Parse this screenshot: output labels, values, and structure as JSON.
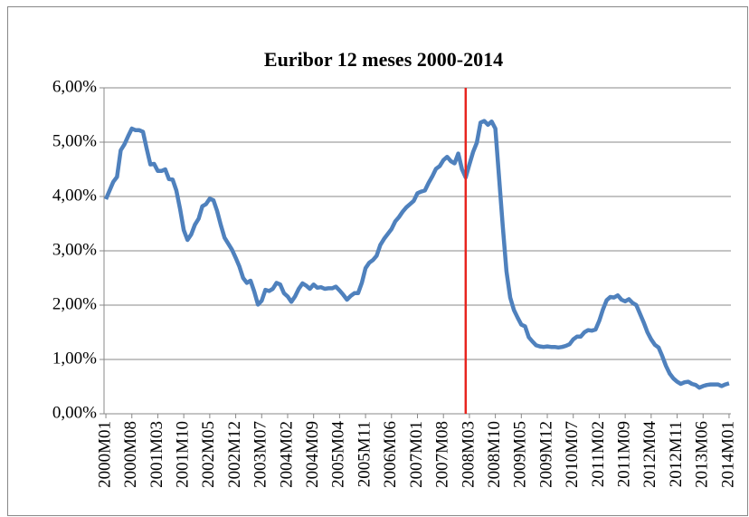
{
  "chart_data": {
    "type": "line",
    "title": "Euribor 12 meses 2000-2014",
    "categories": [
      "2000M01",
      null,
      null,
      null,
      null,
      null,
      null,
      "2000M08",
      null,
      null,
      null,
      null,
      null,
      null,
      "2001M03",
      null,
      null,
      null,
      null,
      null,
      null,
      "2001M10",
      null,
      null,
      null,
      null,
      null,
      null,
      "2002M05",
      null,
      null,
      null,
      null,
      null,
      null,
      "2002M12",
      null,
      null,
      null,
      null,
      null,
      null,
      "2003M07",
      null,
      null,
      null,
      null,
      null,
      null,
      "2004M02",
      null,
      null,
      null,
      null,
      null,
      null,
      "2004M09",
      null,
      null,
      null,
      null,
      null,
      null,
      "2005M04",
      null,
      null,
      null,
      null,
      null,
      null,
      "2005M11",
      null,
      null,
      null,
      null,
      null,
      null,
      "2006M06",
      null,
      null,
      null,
      null,
      null,
      null,
      "2007M01",
      null,
      null,
      null,
      null,
      null,
      null,
      "2007M08",
      null,
      null,
      null,
      null,
      null,
      null,
      "2008M03",
      null,
      null,
      null,
      null,
      null,
      null,
      "2008M10",
      null,
      null,
      null,
      null,
      null,
      null,
      "2009M05",
      null,
      null,
      null,
      null,
      null,
      null,
      "2009M12",
      null,
      null,
      null,
      null,
      null,
      null,
      "2010M07",
      null,
      null,
      null,
      null,
      null,
      null,
      "2011M02",
      null,
      null,
      null,
      null,
      null,
      null,
      "2011M09",
      null,
      null,
      null,
      null,
      null,
      null,
      "2012M04",
      null,
      null,
      null,
      null,
      null,
      null,
      "2012M11",
      null,
      null,
      null,
      null,
      null,
      null,
      "2013M06",
      null,
      null,
      null,
      null,
      null,
      null,
      "2014M01"
    ],
    "series": [
      {
        "color": "#4f81bd",
        "values": [
          3.95,
          4.11,
          4.27,
          4.36,
          4.85,
          4.96,
          5.11,
          5.25,
          5.22,
          5.22,
          5.19,
          4.88,
          4.59,
          4.6,
          4.47,
          4.47,
          4.5,
          4.32,
          4.31,
          4.11,
          3.77,
          3.38,
          3.2,
          3.3,
          3.48,
          3.59,
          3.82,
          3.86,
          3.96,
          3.93,
          3.73,
          3.47,
          3.24,
          3.13,
          3.02,
          2.87,
          2.71,
          2.5,
          2.41,
          2.45,
          2.25,
          2.01,
          2.08,
          2.28,
          2.26,
          2.3,
          2.41,
          2.38,
          2.22,
          2.16,
          2.06,
          2.16,
          2.3,
          2.4,
          2.36,
          2.3,
          2.38,
          2.32,
          2.33,
          2.3,
          2.31,
          2.31,
          2.34,
          2.27,
          2.19,
          2.1,
          2.17,
          2.22,
          2.22,
          2.41,
          2.68,
          2.78,
          2.83,
          2.91,
          3.11,
          3.22,
          3.31,
          3.4,
          3.54,
          3.62,
          3.72,
          3.8,
          3.86,
          3.92,
          4.06,
          4.09,
          4.11,
          4.25,
          4.37,
          4.51,
          4.56,
          4.67,
          4.73,
          4.65,
          4.61,
          4.79,
          4.5,
          4.35,
          4.59,
          4.82,
          4.99,
          5.36,
          5.39,
          5.32,
          5.38,
          5.25,
          4.35,
          3.45,
          2.62,
          2.14,
          1.91,
          1.77,
          1.64,
          1.61,
          1.41,
          1.33,
          1.26,
          1.24,
          1.23,
          1.24,
          1.23,
          1.23,
          1.22,
          1.23,
          1.25,
          1.28,
          1.37,
          1.42,
          1.42,
          1.5,
          1.54,
          1.53,
          1.55,
          1.71,
          1.92,
          2.09,
          2.15,
          2.14,
          2.18,
          2.1,
          2.07,
          2.11,
          2.04,
          2.0,
          1.84,
          1.68,
          1.5,
          1.37,
          1.27,
          1.22,
          1.06,
          0.88,
          0.74,
          0.65,
          0.59,
          0.55,
          0.58,
          0.59,
          0.55,
          0.53,
          0.48,
          0.51,
          0.53,
          0.54,
          0.54,
          0.54,
          0.51,
          0.54,
          0.56
        ]
      }
    ],
    "ylim": [
      0,
      6
    ],
    "yticks": [
      {
        "value": 0,
        "label": "0,00%"
      },
      {
        "value": 1,
        "label": "1,00%"
      },
      {
        "value": 2,
        "label": "2,00%"
      },
      {
        "value": 3,
        "label": "3,00%"
      },
      {
        "value": 4,
        "label": "4,00%"
      },
      {
        "value": 5,
        "label": "5,00%"
      },
      {
        "value": 6,
        "label": "6,00%"
      }
    ],
    "grid": true,
    "marker_line": {
      "at": 97,
      "color": "#e8251f"
    }
  }
}
